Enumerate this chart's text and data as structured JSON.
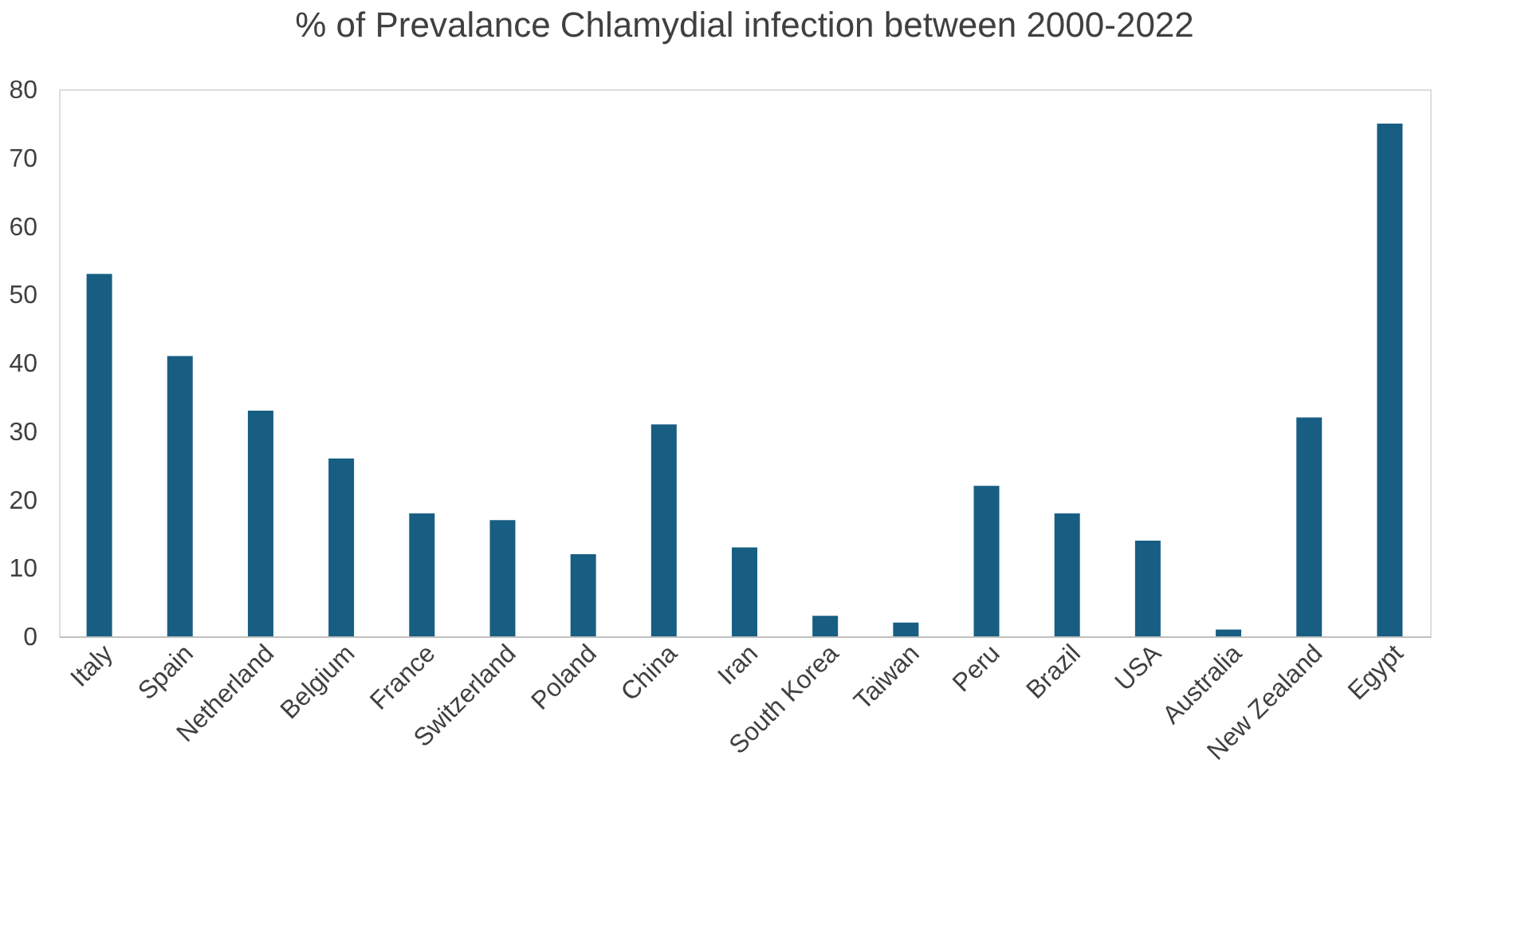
{
  "chart_data": {
    "type": "bar",
    "title": "% of Prevalance Chlamydial infection between 2000-2022",
    "categories": [
      "Italy",
      "Spain",
      "Netherland",
      "Belgium",
      "France",
      "Switzerland",
      "Poland",
      "China",
      "Iran",
      "South Korea",
      "Taiwan",
      "Peru",
      "Brazil",
      "USA",
      "Australia",
      "New Zealand",
      "Egypt"
    ],
    "values": [
      53,
      41,
      33,
      26,
      18,
      17,
      12,
      31,
      13,
      3,
      2,
      22,
      18,
      14,
      1,
      32,
      75
    ],
    "color": "#175e82",
    "ylim": [
      0,
      80
    ],
    "yticks": [
      0,
      10,
      20,
      30,
      40,
      50,
      60,
      70,
      80
    ],
    "grid": false,
    "legend": false
  }
}
